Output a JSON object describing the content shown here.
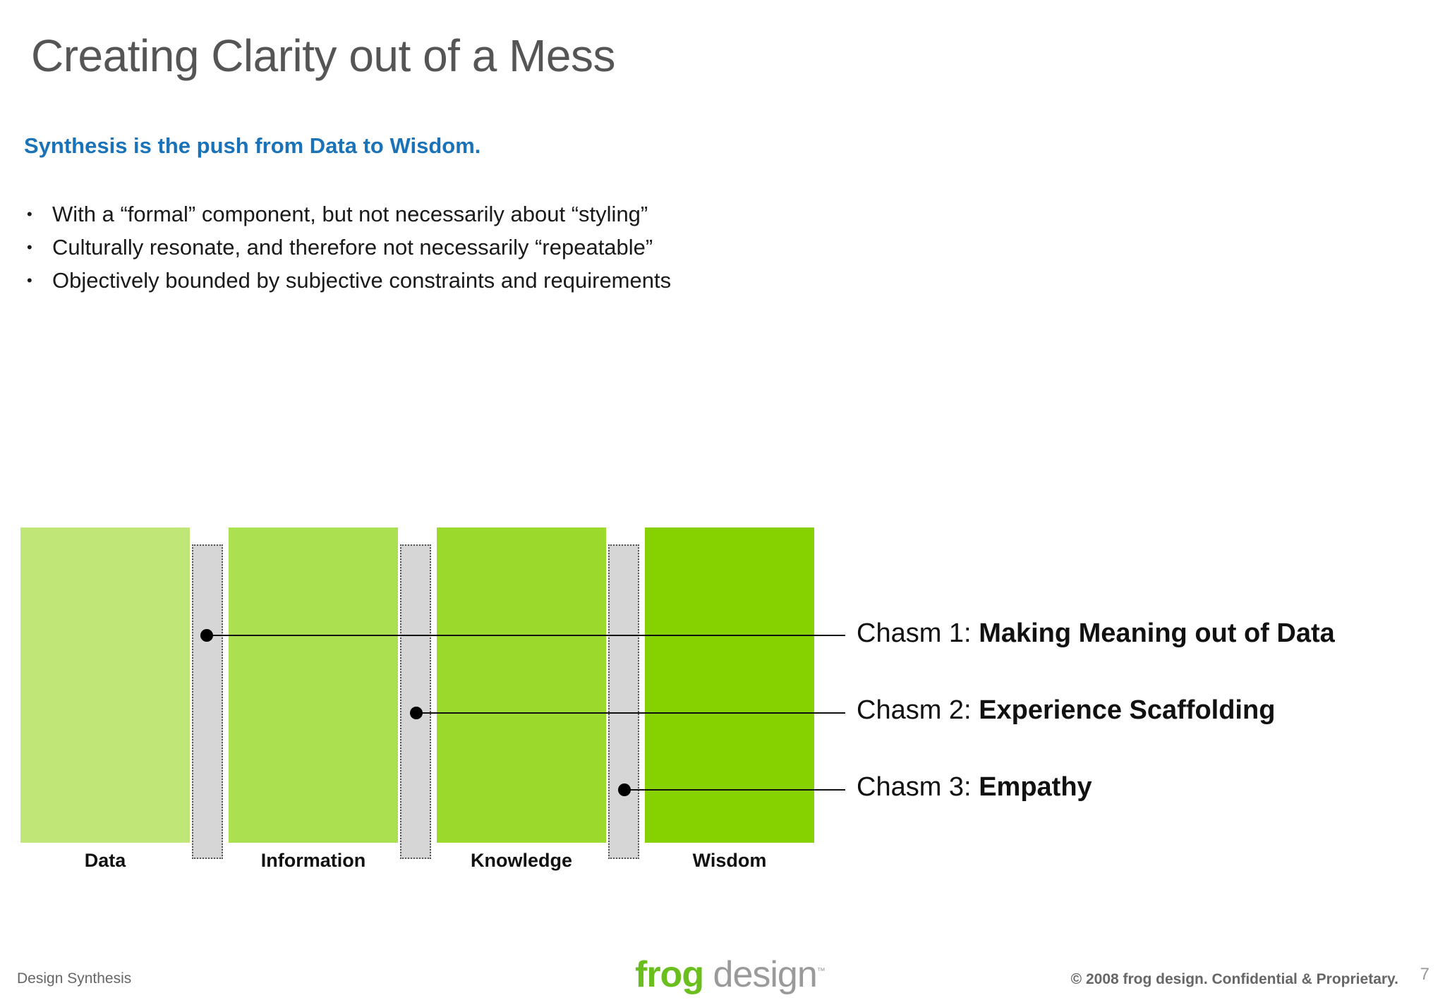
{
  "slide": {
    "title": "Creating Clarity out of a Mess",
    "subtitle": "Synthesis is the push from Data to Wisdom.",
    "bullets": [
      "With a “formal” component, but not necessarily about “styling”",
      "Culturally resonate, and therefore not necessarily “repeatable”",
      "Objectively bounded by subjective constraints and requirements"
    ],
    "bullet_glyph": "•"
  },
  "diagram": {
    "stages": [
      {
        "label": "Data",
        "color": "#c0e678"
      },
      {
        "label": "Information",
        "color": "#abe050"
      },
      {
        "label": "Knowledge",
        "color": "#9bda2c"
      },
      {
        "label": "Wisdom",
        "color": "#86d200"
      }
    ],
    "chasms": [
      {
        "prefix": "Chasm 1:",
        "name": "Making Meaning out of Data"
      },
      {
        "prefix": "Chasm 2:",
        "name": "Experience Scaffolding"
      },
      {
        "prefix": "Chasm 3:",
        "name": "Empathy"
      }
    ]
  },
  "footer": {
    "left": "Design Synthesis",
    "logo_frog": "frog",
    "logo_design": " design",
    "logo_tm": "™",
    "copyright": "© 2008 frog design. Confidential & Proprietary.",
    "page_number": "7"
  }
}
